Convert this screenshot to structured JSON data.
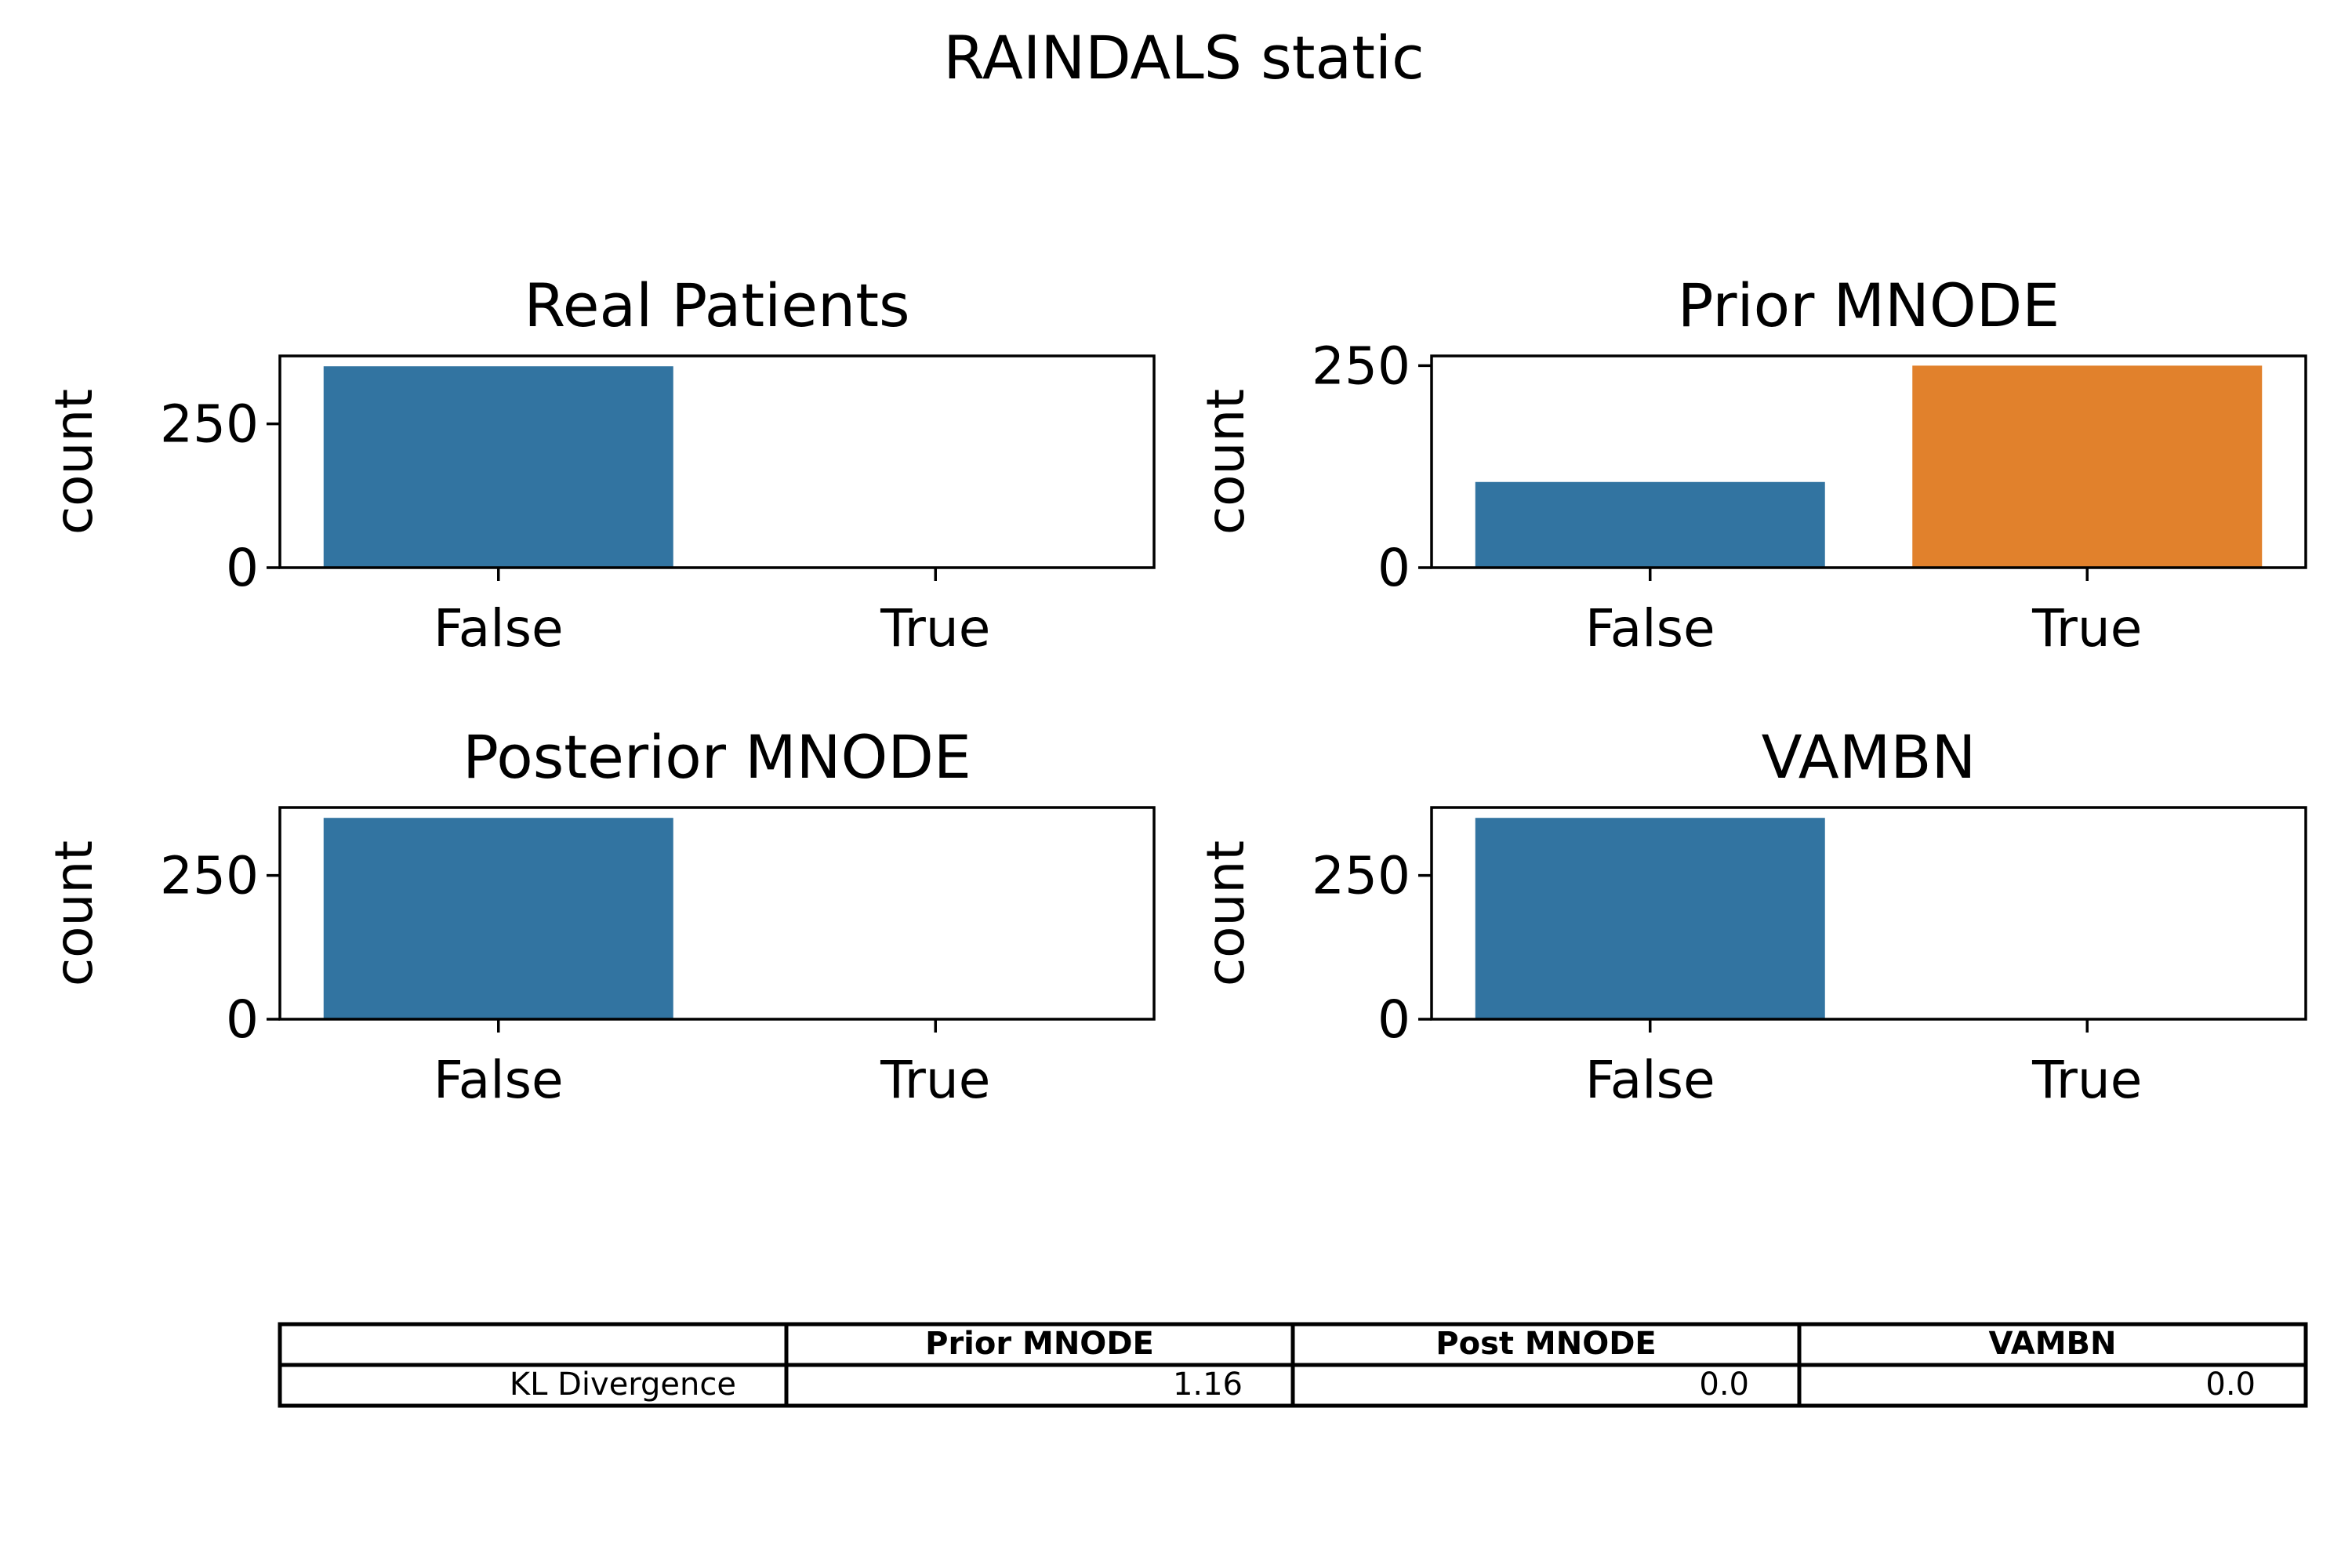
{
  "figure": {
    "title": "RAINDALS static"
  },
  "chart_data": [
    {
      "type": "bar",
      "title": "Real Patients",
      "ylabel": "count",
      "categories": [
        "False",
        "True"
      ],
      "values": [
        350,
        0
      ],
      "colors": [
        "#3274a1",
        "#e1812c"
      ],
      "ylim": [
        0,
        368
      ],
      "yticks": [
        0,
        250
      ],
      "grid": false
    },
    {
      "type": "bar",
      "title": "Prior MNODE",
      "ylabel": "count",
      "categories": [
        "False",
        "True"
      ],
      "values": [
        106,
        250
      ],
      "colors": [
        "#3274a1",
        "#e1812c"
      ],
      "ylim": [
        0,
        262
      ],
      "yticks": [
        0,
        250
      ],
      "grid": false
    },
    {
      "type": "bar",
      "title": "Posterior MNODE",
      "ylabel": "count",
      "categories": [
        "False",
        "True"
      ],
      "values": [
        350,
        0
      ],
      "colors": [
        "#3274a1",
        "#e1812c"
      ],
      "ylim": [
        0,
        368
      ],
      "yticks": [
        0,
        250
      ],
      "grid": false
    },
    {
      "type": "bar",
      "title": "VAMBN",
      "ylabel": "count",
      "categories": [
        "False",
        "True"
      ],
      "values": [
        350,
        0
      ],
      "colors": [
        "#3274a1",
        "#e1812c"
      ],
      "ylim": [
        0,
        368
      ],
      "yticks": [
        0,
        250
      ],
      "grid": false
    },
    {
      "type": "table",
      "columns": [
        "",
        "Prior MNODE",
        "Post MNODE",
        "VAMBN"
      ],
      "rows": [
        [
          "KL Divergence",
          "1.16",
          "0.0",
          "0.0"
        ]
      ]
    }
  ]
}
